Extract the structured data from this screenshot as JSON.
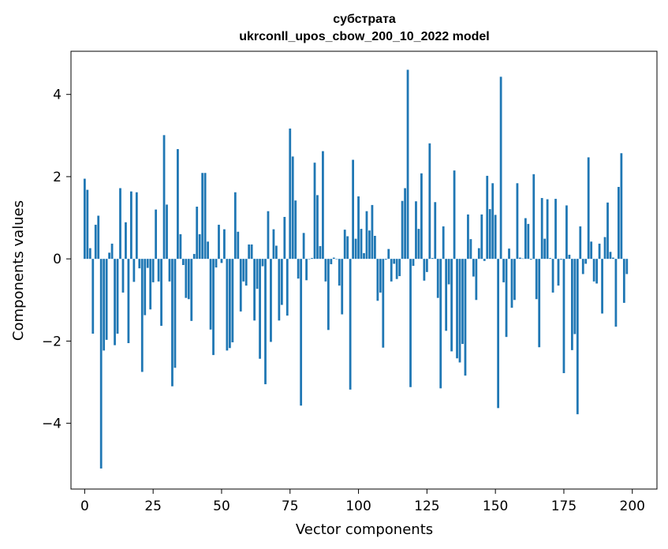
{
  "chart_data": {
    "type": "bar",
    "title": "субстрата",
    "subtitle": "ukrconll_upos_cbow_200_10_2022 model",
    "xlabel": "Vector components",
    "ylabel": "Components values",
    "xlim": [
      -5,
      209
    ],
    "ylim": [
      -5.6,
      5.05
    ],
    "xticks": [
      0,
      25,
      50,
      75,
      100,
      125,
      150,
      175,
      200
    ],
    "yticks": [
      -4,
      -2,
      0,
      2,
      4
    ],
    "ytick_labels": [
      "−4",
      "−2",
      "0",
      "2",
      "4"
    ],
    "grid": false,
    "bar_color": "#1f77b4",
    "values": [
      1.95,
      1.68,
      0.26,
      -1.82,
      0.83,
      1.05,
      -5.1,
      -2.23,
      -1.97,
      0.15,
      0.37,
      -2.1,
      -1.82,
      1.72,
      -0.82,
      0.89,
      -2.05,
      1.64,
      -0.56,
      1.62,
      -0.23,
      -2.75,
      -1.37,
      -0.22,
      -1.23,
      -0.57,
      1.2,
      -0.55,
      -1.63,
      3.01,
      1.32,
      -0.55,
      -3.1,
      -2.65,
      2.67,
      0.6,
      -0.15,
      -0.95,
      -0.98,
      -1.51,
      0.12,
      1.27,
      0.6,
      2.09,
      2.09,
      0.42,
      -1.72,
      -2.34,
      -0.21,
      0.83,
      -0.1,
      0.72,
      -2.23,
      -2.17,
      -2.03,
      1.62,
      0.66,
      -1.28,
      -0.55,
      -0.65,
      0.35,
      0.35,
      -1.5,
      -0.73,
      -2.43,
      -0.18,
      -3.05,
      1.16,
      -2.02,
      0.72,
      0.32,
      -1.5,
      -1.12,
      1.02,
      -1.38,
      3.17,
      2.49,
      1.42,
      -0.48,
      -3.57,
      0.63,
      -0.52,
      -0.01,
      0.02,
      2.34,
      1.55,
      0.31,
      2.62,
      -0.55,
      -1.73,
      -0.13,
      0.03,
      -0.01,
      -0.65,
      -1.35,
      0.71,
      0.55,
      -3.18,
      2.41,
      0.49,
      1.52,
      0.73,
      0.14,
      1.16,
      0.69,
      1.31,
      0.56,
      -1.02,
      -0.82,
      -2.16,
      -0.02,
      0.24,
      -0.55,
      -0.12,
      -0.49,
      -0.42,
      1.41,
      1.72,
      4.6,
      -3.12,
      -0.17,
      1.4,
      0.73,
      2.08,
      -0.53,
      -0.32,
      2.81,
      0.02,
      1.38,
      -0.95,
      -3.15,
      0.79,
      -1.75,
      -0.62,
      -2.25,
      2.15,
      -2.42,
      -2.52,
      -2.07,
      -2.84,
      1.08,
      0.48,
      -0.43,
      -1.0,
      0.26,
      1.08,
      -0.05,
      2.02,
      1.21,
      1.84,
      1.07,
      -3.63,
      4.43,
      -0.57,
      -1.9,
      0.25,
      -1.19,
      -1.0,
      1.84,
      0.03,
      0.01,
      0.99,
      0.85,
      -0.02,
      2.06,
      -0.98,
      -2.15,
      1.48,
      0.49,
      1.45,
      0.02,
      -0.82,
      1.46,
      -0.65,
      -0.02,
      -2.78,
      1.3,
      0.1,
      -2.22,
      -1.83,
      -3.78,
      0.79,
      -0.37,
      -0.12,
      2.47,
      0.42,
      -0.55,
      -0.6,
      0.37,
      -1.33,
      0.53,
      1.37,
      0.17,
      0.03,
      -1.65,
      1.75,
      2.57,
      -1.07,
      -0.37
    ]
  }
}
